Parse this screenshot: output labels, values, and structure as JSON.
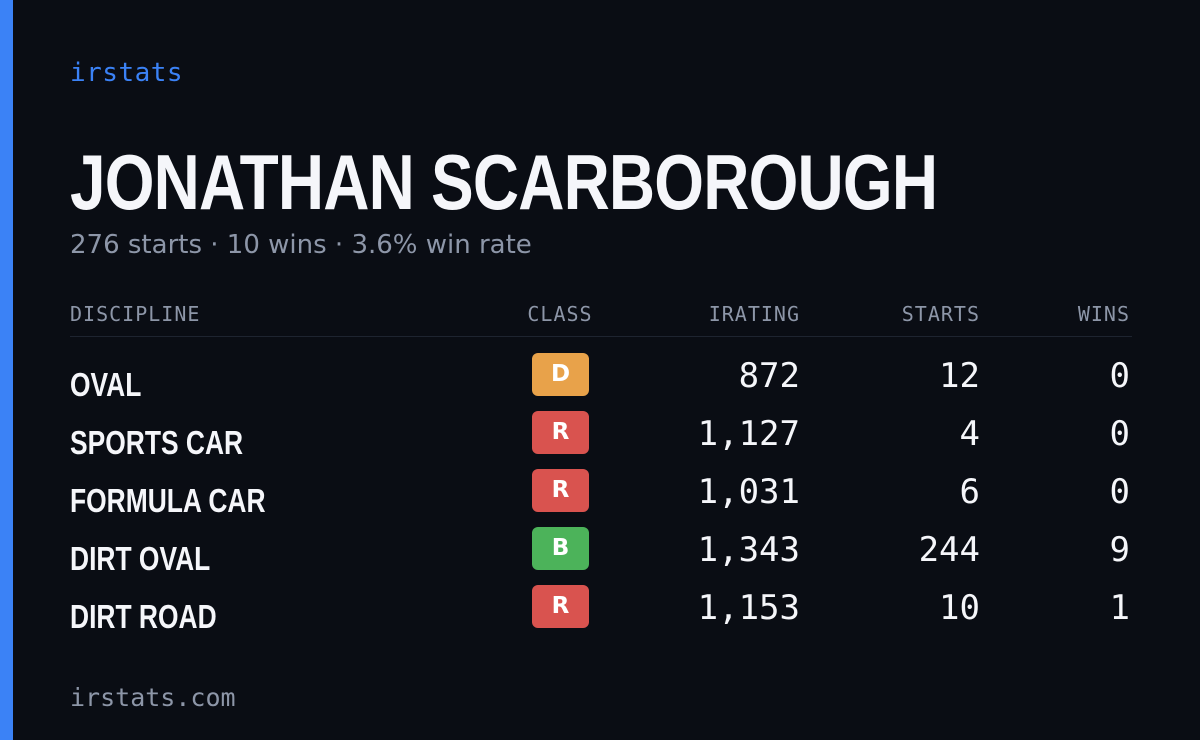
{
  "brand": "irstats",
  "colors": {
    "accent": "#3b82f6",
    "background": "#0a0d14",
    "class_D": "#e8a24a",
    "class_R": "#d9534f",
    "class_B": "#4cb35a"
  },
  "driver": {
    "name": "JONATHAN SCARBOROUGH",
    "summary": "276 starts · 10 wins · 3.6% win rate"
  },
  "table": {
    "headers": {
      "discipline": "DISCIPLINE",
      "class": "CLASS",
      "irating": "IRATING",
      "starts": "STARTS",
      "wins": "WINS"
    },
    "rows": [
      {
        "discipline": "OVAL",
        "class": "D",
        "class_color": "#e8a24a",
        "irating": "872",
        "starts": "12",
        "wins": "0"
      },
      {
        "discipline": "SPORTS CAR",
        "class": "R",
        "class_color": "#d9534f",
        "irating": "1,127",
        "starts": "4",
        "wins": "0"
      },
      {
        "discipline": "FORMULA CAR",
        "class": "R",
        "class_color": "#d9534f",
        "irating": "1,031",
        "starts": "6",
        "wins": "0"
      },
      {
        "discipline": "DIRT OVAL",
        "class": "B",
        "class_color": "#4cb35a",
        "irating": "1,343",
        "starts": "244",
        "wins": "9"
      },
      {
        "discipline": "DIRT ROAD",
        "class": "R",
        "class_color": "#d9534f",
        "irating": "1,153",
        "starts": "10",
        "wins": "1"
      }
    ]
  },
  "footer": "irstats.com"
}
